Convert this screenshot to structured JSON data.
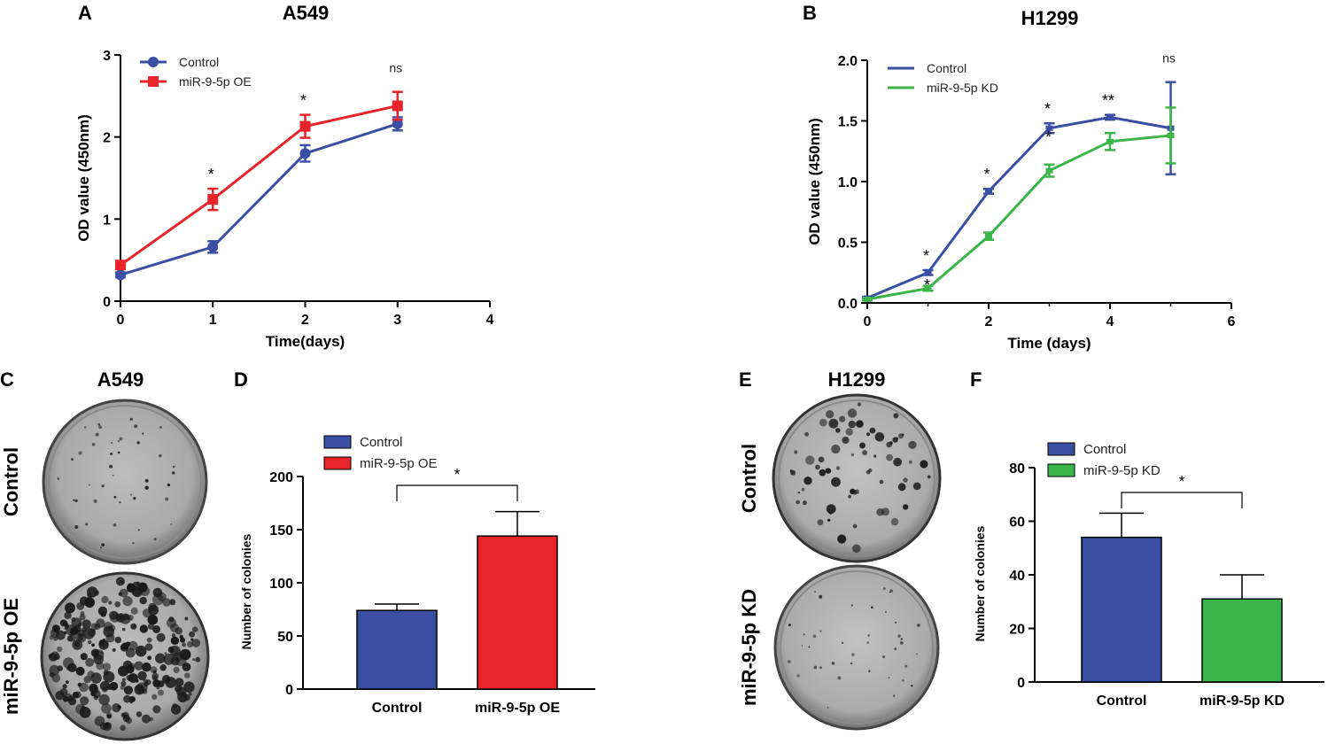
{
  "panels": {
    "a": {
      "letter": "A",
      "title": "A549"
    },
    "b": {
      "letter": "B",
      "title": "H1299"
    },
    "c": {
      "letter": "C",
      "title": "A549",
      "row_top": "Control",
      "row_bottom": "miR-9-5p OE"
    },
    "d": {
      "letter": "D"
    },
    "e": {
      "letter": "E",
      "title": "H1299",
      "row_top": "Control",
      "row_bottom": "miR-9-5p KD"
    },
    "f": {
      "letter": "F"
    }
  },
  "colors": {
    "control": "#3a4fa3",
    "oe": "#e8232a",
    "kd": "#3bb54a"
  },
  "chart_data": [
    {
      "id": "A",
      "type": "line",
      "title": "A549",
      "xlabel": "Time(days)",
      "ylabel": "OD value (450nm)",
      "xlim": [
        0,
        4
      ],
      "ylim": [
        0,
        3
      ],
      "xticks": [
        "0",
        "1",
        "2",
        "3",
        "4"
      ],
      "yticks": [
        "0",
        "1",
        "2",
        "3"
      ],
      "series": [
        {
          "name": "Control",
          "marker": "circle",
          "x": [
            0,
            1,
            2,
            3
          ],
          "y": [
            0.32,
            0.66,
            1.8,
            2.16
          ],
          "err": [
            0.03,
            0.07,
            0.1,
            0.08
          ]
        },
        {
          "name": "miR-9-5p OE",
          "marker": "square",
          "x": [
            0,
            1,
            2,
            3
          ],
          "y": [
            0.44,
            1.24,
            2.13,
            2.38
          ],
          "err": [
            0.03,
            0.13,
            0.14,
            0.17
          ]
        }
      ],
      "annotations": [
        {
          "x": 1,
          "text": "*"
        },
        {
          "x": 2,
          "text": "*"
        },
        {
          "x": 3,
          "text": "ns"
        }
      ]
    },
    {
      "id": "B",
      "type": "line",
      "title": "H1299",
      "xlabel": "Time (days)",
      "ylabel": "OD value (450nm)",
      "xlim": [
        0,
        6
      ],
      "ylim": [
        0,
        2
      ],
      "xticks": [
        "0",
        "2",
        "4",
        "6"
      ],
      "yticks": [
        "0.0",
        "0.5",
        "1.0",
        "1.5",
        "2.0"
      ],
      "series": [
        {
          "name": "Control",
          "x": [
            0,
            1,
            2,
            3,
            4,
            5
          ],
          "y": [
            0.04,
            0.25,
            0.92,
            1.44,
            1.53,
            1.44
          ],
          "err": [
            0.01,
            0.02,
            0.02,
            0.04,
            0.02,
            0.38
          ]
        },
        {
          "name": "miR-9-5p KD",
          "x": [
            0,
            1,
            2,
            3,
            4,
            5
          ],
          "y": [
            0.03,
            0.12,
            0.55,
            1.09,
            1.33,
            1.38
          ],
          "err": [
            0.01,
            0.02,
            0.03,
            0.05,
            0.07,
            0.23
          ]
        }
      ],
      "annotations": [
        {
          "x": 1,
          "text": "*"
        },
        {
          "x": 1,
          "text": "*",
          "below": true
        },
        {
          "x": 2,
          "text": "*"
        },
        {
          "x": 3,
          "text": "*"
        },
        {
          "x": 3,
          "text": "*",
          "below": true
        },
        {
          "x": 4,
          "text": "**"
        },
        {
          "x": 5,
          "text": "ns"
        }
      ]
    },
    {
      "id": "D",
      "type": "bar",
      "categories": [
        "Control",
        "miR-9-5p OE"
      ],
      "values": [
        74,
        144
      ],
      "err": [
        6,
        23
      ],
      "ylabel": "Number of colonies",
      "ylim": [
        0,
        200
      ],
      "yticks": [
        "0",
        "50",
        "100",
        "150",
        "200"
      ],
      "legend": [
        "Control",
        "miR-9-5p OE"
      ],
      "significance": "*"
    },
    {
      "id": "F",
      "type": "bar",
      "categories": [
        "Control",
        "miR-9-5p KD"
      ],
      "values": [
        54,
        31
      ],
      "err": [
        9,
        9
      ],
      "ylabel": "Number of colonies",
      "ylim": [
        0,
        80
      ],
      "yticks": [
        "0",
        "20",
        "40",
        "60",
        "80"
      ],
      "legend": [
        "Control",
        "miR-9-5p KD"
      ],
      "significance": "*"
    }
  ]
}
